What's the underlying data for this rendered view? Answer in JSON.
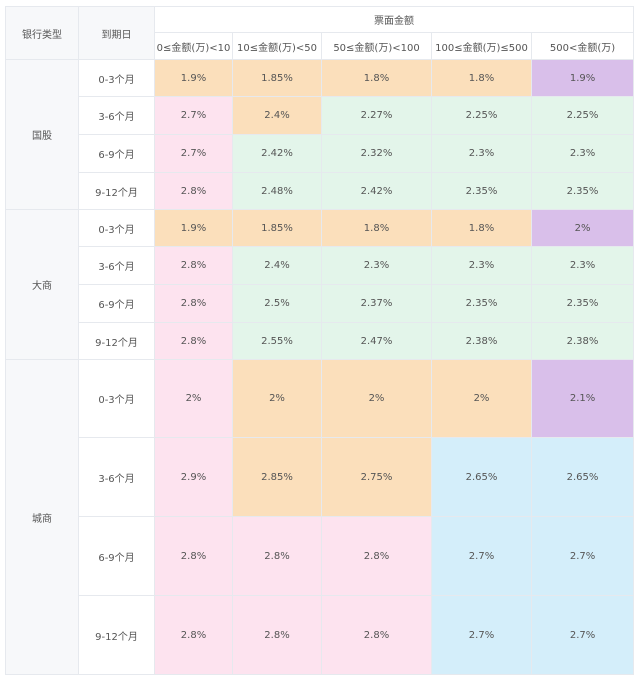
{
  "header": {
    "bank_type": "银行类型",
    "maturity": "到期日",
    "amount_group": "票面金额",
    "amount_ranges": [
      "0≤金额(万)<10",
      "10≤金额(万)<50",
      "50≤金额(万)<100",
      "100≤金额(万)≤500",
      "500<金额(万)"
    ]
  },
  "colors": {
    "orange": "#fbdfbb",
    "purple": "#d9bfea",
    "pink": "#fde3ef",
    "green": "#e3f5ea",
    "blue": "#d4eefa",
    "label_bg": "#f7f8fa",
    "border": "#e6e9ee"
  },
  "groups": [
    {
      "bank": "国股",
      "rows": [
        {
          "maturity": "0-3个月",
          "values": [
            "1.9%",
            "1.85%",
            "1.8%",
            "1.8%",
            "1.9%"
          ],
          "colors": [
            "orange",
            "orange",
            "orange",
            "orange",
            "purple"
          ]
        },
        {
          "maturity": "3-6个月",
          "values": [
            "2.7%",
            "2.4%",
            "2.27%",
            "2.25%",
            "2.25%"
          ],
          "colors": [
            "pink",
            "orange",
            "green",
            "green",
            "green"
          ]
        },
        {
          "maturity": "6-9个月",
          "values": [
            "2.7%",
            "2.42%",
            "2.32%",
            "2.3%",
            "2.3%"
          ],
          "colors": [
            "pink",
            "green",
            "green",
            "green",
            "green"
          ]
        },
        {
          "maturity": "9-12个月",
          "values": [
            "2.8%",
            "2.48%",
            "2.42%",
            "2.35%",
            "2.35%"
          ],
          "colors": [
            "pink",
            "green",
            "green",
            "green",
            "green"
          ]
        }
      ]
    },
    {
      "bank": "大商",
      "rows": [
        {
          "maturity": "0-3个月",
          "values": [
            "1.9%",
            "1.85%",
            "1.8%",
            "1.8%",
            "2%"
          ],
          "colors": [
            "orange",
            "orange",
            "orange",
            "orange",
            "purple"
          ]
        },
        {
          "maturity": "3-6个月",
          "values": [
            "2.8%",
            "2.4%",
            "2.3%",
            "2.3%",
            "2.3%"
          ],
          "colors": [
            "pink",
            "green",
            "green",
            "green",
            "green"
          ]
        },
        {
          "maturity": "6-9个月",
          "values": [
            "2.8%",
            "2.5%",
            "2.37%",
            "2.35%",
            "2.35%"
          ],
          "colors": [
            "pink",
            "green",
            "green",
            "green",
            "green"
          ]
        },
        {
          "maturity": "9-12个月",
          "values": [
            "2.8%",
            "2.55%",
            "2.47%",
            "2.38%",
            "2.38%"
          ],
          "colors": [
            "pink",
            "green",
            "green",
            "green",
            "green"
          ]
        }
      ]
    },
    {
      "bank": "城商",
      "rows": [
        {
          "maturity": "0-3个月",
          "values": [
            "2%",
            "2%",
            "2%",
            "2%",
            "2.1%"
          ],
          "colors": [
            "pink",
            "orange",
            "orange",
            "orange",
            "purple"
          ]
        },
        {
          "maturity": "3-6个月",
          "values": [
            "2.9%",
            "2.85%",
            "2.75%",
            "2.65%",
            "2.65%"
          ],
          "colors": [
            "pink",
            "orange",
            "orange",
            "blue",
            "blue"
          ]
        },
        {
          "maturity": "6-9个月",
          "values": [
            "2.8%",
            "2.8%",
            "2.8%",
            "2.7%",
            "2.7%"
          ],
          "colors": [
            "pink",
            "pink",
            "pink",
            "blue",
            "blue"
          ]
        },
        {
          "maturity": "9-12个月",
          "values": [
            "2.8%",
            "2.8%",
            "2.8%",
            "2.7%",
            "2.7%"
          ],
          "colors": [
            "pink",
            "pink",
            "pink",
            "blue",
            "blue"
          ]
        }
      ]
    }
  ]
}
